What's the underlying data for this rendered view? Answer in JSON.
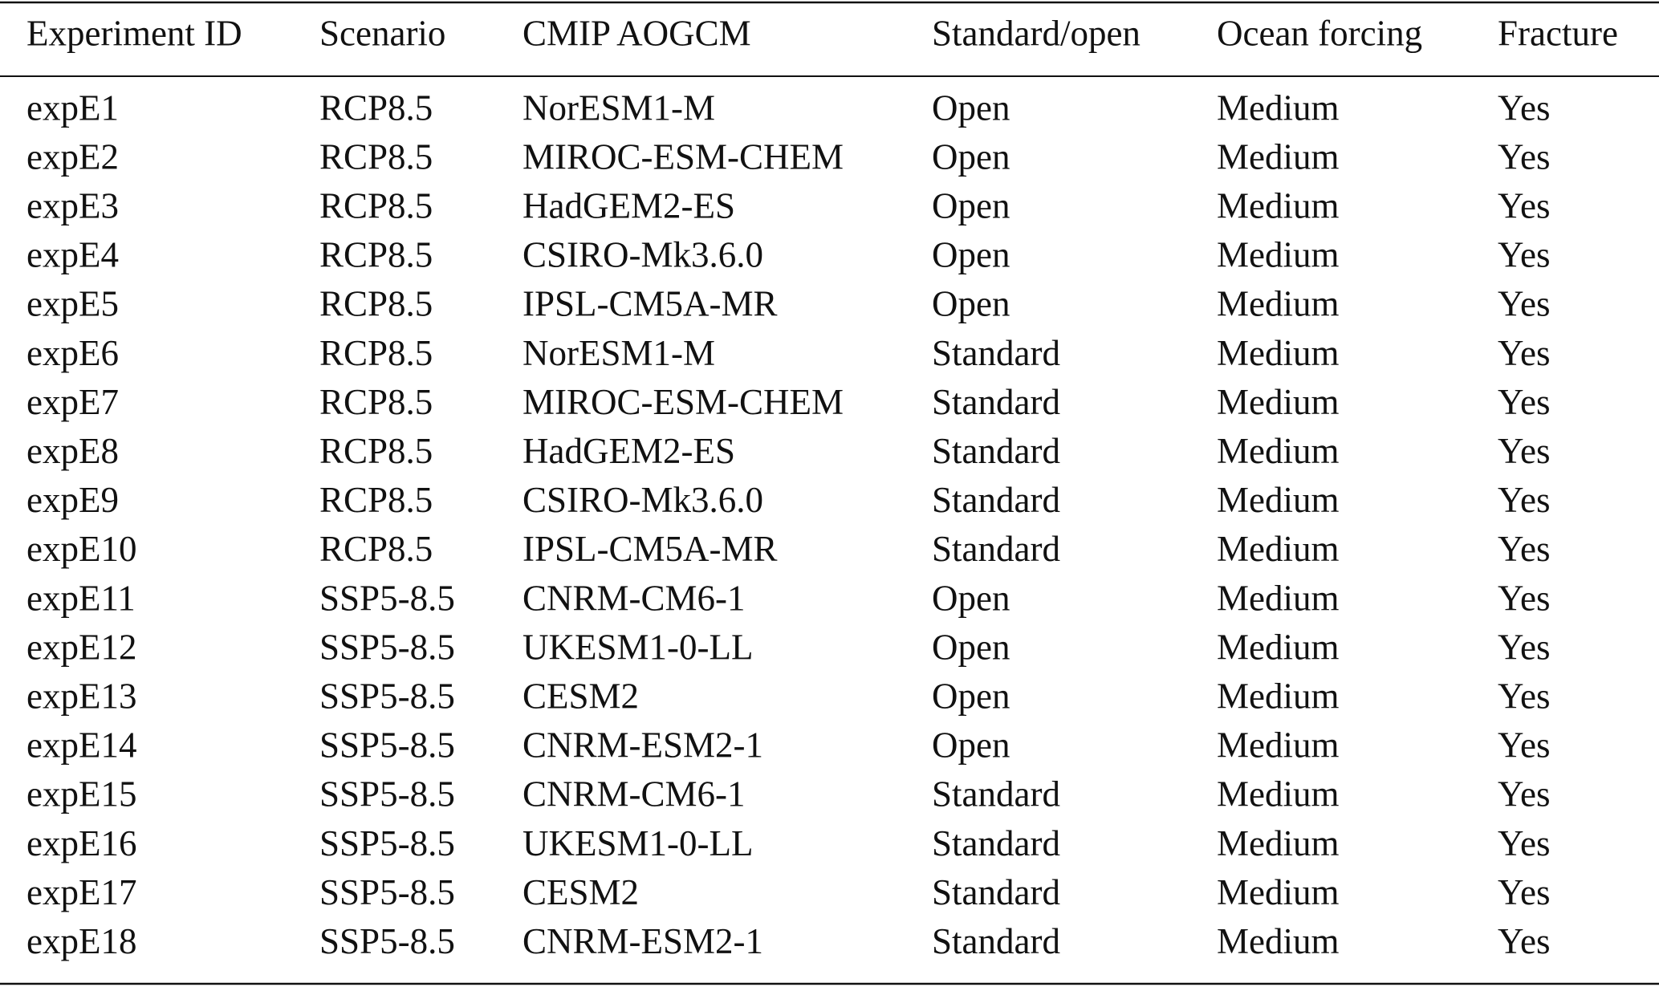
{
  "table": {
    "header": [
      "Experiment ID",
      "Scenario",
      "CMIP AOGCM",
      "Standard/open",
      "Ocean forcing",
      "Fracture"
    ],
    "rows": [
      [
        "expE1",
        "RCP8.5",
        "NorESM1-M",
        "Open",
        "Medium",
        "Yes"
      ],
      [
        "expE2",
        "RCP8.5",
        "MIROC-ESM-CHEM",
        "Open",
        "Medium",
        "Yes"
      ],
      [
        "expE3",
        "RCP8.5",
        "HadGEM2-ES",
        "Open",
        "Medium",
        "Yes"
      ],
      [
        "expE4",
        "RCP8.5",
        "CSIRO-Mk3.6.0",
        "Open",
        "Medium",
        "Yes"
      ],
      [
        "expE5",
        "RCP8.5",
        "IPSL-CM5A-MR",
        "Open",
        "Medium",
        "Yes"
      ],
      [
        "expE6",
        "RCP8.5",
        "NorESM1-M",
        "Standard",
        "Medium",
        "Yes"
      ],
      [
        "expE7",
        "RCP8.5",
        "MIROC-ESM-CHEM",
        "Standard",
        "Medium",
        "Yes"
      ],
      [
        "expE8",
        "RCP8.5",
        "HadGEM2-ES",
        "Standard",
        "Medium",
        "Yes"
      ],
      [
        "expE9",
        "RCP8.5",
        "CSIRO-Mk3.6.0",
        "Standard",
        "Medium",
        "Yes"
      ],
      [
        "expE10",
        "RCP8.5",
        "IPSL-CM5A-MR",
        "Standard",
        "Medium",
        "Yes"
      ],
      [
        "expE11",
        "SSP5-8.5",
        "CNRM-CM6-1",
        "Open",
        "Medium",
        "Yes"
      ],
      [
        "expE12",
        "SSP5-8.5",
        "UKESM1-0-LL",
        "Open",
        "Medium",
        "Yes"
      ],
      [
        "expE13",
        "SSP5-8.5",
        "CESM2",
        "Open",
        "Medium",
        "Yes"
      ],
      [
        "expE14",
        "SSP5-8.5",
        "CNRM-ESM2-1",
        "Open",
        "Medium",
        "Yes"
      ],
      [
        "expE15",
        "SSP5-8.5",
        "CNRM-CM6-1",
        "Standard",
        "Medium",
        "Yes"
      ],
      [
        "expE16",
        "SSP5-8.5",
        "UKESM1-0-LL",
        "Standard",
        "Medium",
        "Yes"
      ],
      [
        "expE17",
        "SSP5-8.5",
        "CESM2",
        "Standard",
        "Medium",
        "Yes"
      ],
      [
        "expE18",
        "SSP5-8.5",
        "CNRM-ESM2-1",
        "Standard",
        "Medium",
        "Yes"
      ]
    ]
  }
}
